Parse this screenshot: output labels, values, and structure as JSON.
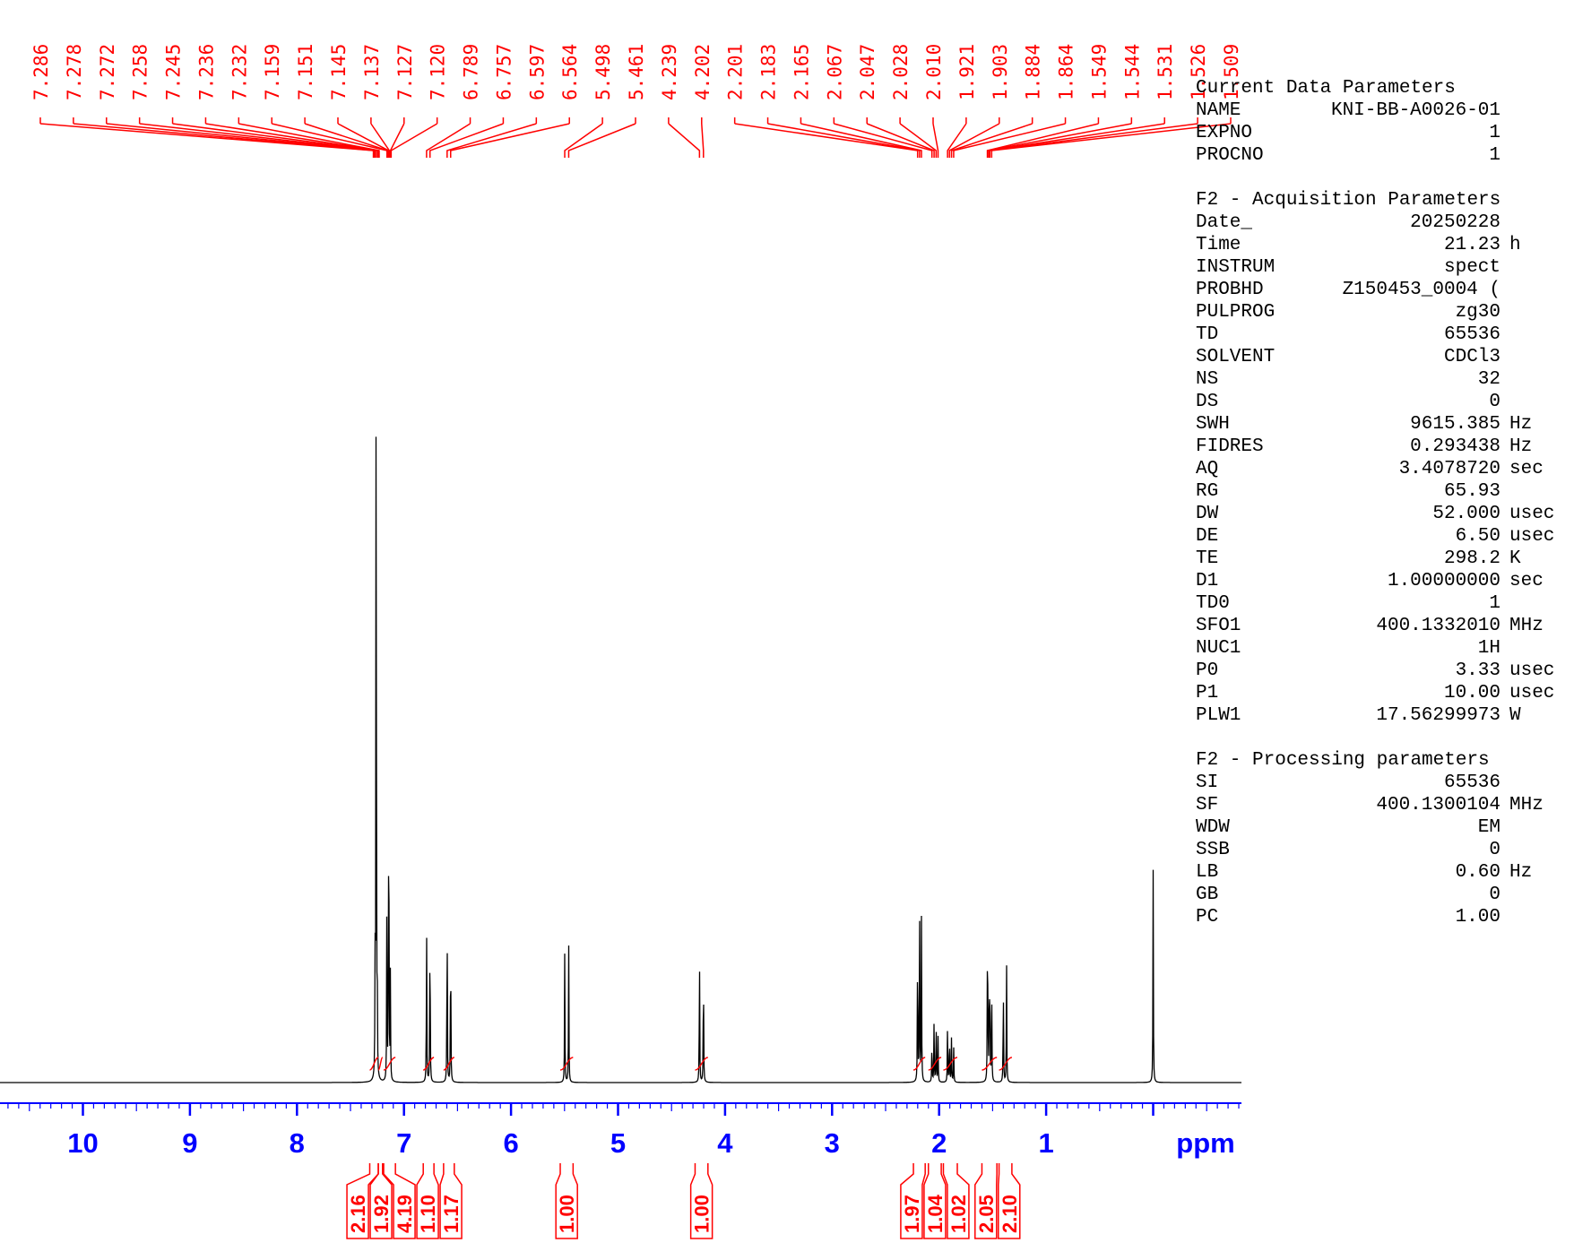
{
  "chart_data": {
    "type": "line",
    "xlabel": "ppm",
    "x_reversed": true,
    "xlim": [
      11.0,
      -0.85
    ],
    "x_ticks": [
      "10",
      "9",
      "8",
      "7",
      "6",
      "5",
      "4",
      "3",
      "2",
      "1"
    ],
    "peak_labels": [
      "7.286",
      "7.278",
      "7.272",
      "7.258",
      "7.245",
      "7.236",
      "7.232",
      "7.159",
      "7.151",
      "7.145",
      "7.137",
      "7.127",
      "7.120",
      "6.789",
      "6.757",
      "6.597",
      "6.564",
      "5.498",
      "5.461",
      "4.239",
      "4.202",
      "2.201",
      "2.183",
      "2.165",
      "2.067",
      "2.047",
      "2.028",
      "2.010",
      "1.921",
      "1.903",
      "1.884",
      "1.864",
      "1.549",
      "1.544",
      "1.531",
      "1.526",
      "1.509"
    ],
    "peaks": [
      {
        "ppm": 7.26,
        "h": 0.95
      },
      {
        "ppm": 7.27,
        "h": 0.12
      },
      {
        "ppm": 7.25,
        "h": 0.1
      },
      {
        "ppm": 7.16,
        "h": 0.2
      },
      {
        "ppm": 7.145,
        "h": 0.22
      },
      {
        "ppm": 7.14,
        "h": 0.16
      },
      {
        "ppm": 7.127,
        "h": 0.12
      },
      {
        "ppm": 6.789,
        "h": 0.185
      },
      {
        "ppm": 6.757,
        "h": 0.2
      },
      {
        "ppm": 6.597,
        "h": 0.21
      },
      {
        "ppm": 6.564,
        "h": 0.185
      },
      {
        "ppm": 5.498,
        "h": 0.145
      },
      {
        "ppm": 5.461,
        "h": 0.155
      },
      {
        "ppm": 4.239,
        "h": 0.155
      },
      {
        "ppm": 4.202,
        "h": 0.145
      },
      {
        "ppm": 2.201,
        "h": 0.17
      },
      {
        "ppm": 2.183,
        "h": 0.23
      },
      {
        "ppm": 2.165,
        "h": 0.18
      },
      {
        "ppm": 2.067,
        "h": 0.05
      },
      {
        "ppm": 2.047,
        "h": 0.07
      },
      {
        "ppm": 2.028,
        "h": 0.07
      },
      {
        "ppm": 2.01,
        "h": 0.05
      },
      {
        "ppm": 1.921,
        "h": 0.07
      },
      {
        "ppm": 1.903,
        "h": 0.06
      },
      {
        "ppm": 1.884,
        "h": 0.05
      },
      {
        "ppm": 1.864,
        "h": 0.04
      },
      {
        "ppm": 1.549,
        "h": 0.11
      },
      {
        "ppm": 1.544,
        "h": 0.1
      },
      {
        "ppm": 1.531,
        "h": 0.1
      },
      {
        "ppm": 1.526,
        "h": 0.1
      },
      {
        "ppm": 1.509,
        "h": 0.12
      },
      {
        "ppm": 1.4,
        "h": 0.12
      },
      {
        "ppm": 1.37,
        "h": 0.14
      },
      {
        "ppm": 0.0,
        "h": 0.235
      }
    ],
    "integrals": [
      {
        "label": "2.16",
        "range": [
          7.32,
          7.24
        ]
      },
      {
        "label": "1.92",
        "range": [
          7.24,
          7.2
        ]
      },
      {
        "label": "4.19",
        "range": [
          7.19,
          7.08
        ]
      },
      {
        "label": "1.10",
        "range": [
          6.82,
          6.72
        ]
      },
      {
        "label": "1.17",
        "range": [
          6.63,
          6.53
        ]
      },
      {
        "label": "1.00",
        "range": [
          5.54,
          5.42
        ]
      },
      {
        "label": "1.00",
        "range": [
          4.28,
          4.16
        ]
      },
      {
        "label": "1.97",
        "range": [
          2.24,
          2.13
        ]
      },
      {
        "label": "1.04",
        "range": [
          2.1,
          1.98
        ]
      },
      {
        "label": "1.02",
        "range": [
          1.96,
          1.83
        ]
      },
      {
        "label": "2.05",
        "range": [
          1.6,
          1.46
        ]
      },
      {
        "label": "2.10",
        "range": [
          1.44,
          1.32
        ]
      }
    ],
    "colors": {
      "spectrum": "#000000",
      "peak_labels": "#ff0000",
      "integrals": "#ff0000",
      "axis": "#0000ff"
    }
  },
  "parameters": {
    "current_title": "Current Data Parameters",
    "current": [
      {
        "k": "NAME",
        "v": "KNI-BB-A0026-01",
        "u": ""
      },
      {
        "k": "EXPNO",
        "v": "1",
        "u": ""
      },
      {
        "k": "PROCNO",
        "v": "1",
        "u": ""
      }
    ],
    "acq_title": "F2 - Acquisition Parameters",
    "acq": [
      {
        "k": "Date_",
        "v": "20250228",
        "u": ""
      },
      {
        "k": "Time",
        "v": "21.23",
        "u": "h"
      },
      {
        "k": "INSTRUM",
        "v": "spect",
        "u": ""
      },
      {
        "k": "PROBHD",
        "v": "Z150453_0004 (",
        "u": ""
      },
      {
        "k": "PULPROG",
        "v": "zg30",
        "u": ""
      },
      {
        "k": "TD",
        "v": "65536",
        "u": ""
      },
      {
        "k": "SOLVENT",
        "v": "CDCl3",
        "u": ""
      },
      {
        "k": "NS",
        "v": "32",
        "u": ""
      },
      {
        "k": "DS",
        "v": "0",
        "u": ""
      },
      {
        "k": "SWH",
        "v": "9615.385",
        "u": "Hz"
      },
      {
        "k": "FIDRES",
        "v": "0.293438",
        "u": "Hz"
      },
      {
        "k": "AQ",
        "v": "3.4078720",
        "u": "sec"
      },
      {
        "k": "RG",
        "v": "65.93",
        "u": ""
      },
      {
        "k": "DW",
        "v": "52.000",
        "u": "usec"
      },
      {
        "k": "DE",
        "v": "6.50",
        "u": "usec"
      },
      {
        "k": "TE",
        "v": "298.2",
        "u": "K"
      },
      {
        "k": "D1",
        "v": "1.00000000",
        "u": "sec"
      },
      {
        "k": "TD0",
        "v": "1",
        "u": ""
      },
      {
        "k": "SFO1",
        "v": "400.1332010",
        "u": "MHz"
      },
      {
        "k": "NUC1",
        "v": "1H",
        "u": ""
      },
      {
        "k": "P0",
        "v": "3.33",
        "u": "usec"
      },
      {
        "k": "P1",
        "v": "10.00",
        "u": "usec"
      },
      {
        "k": "PLW1",
        "v": "17.56299973",
        "u": "W"
      }
    ],
    "proc_title": "F2 - Processing parameters",
    "proc": [
      {
        "k": "SI",
        "v": "65536",
        "u": ""
      },
      {
        "k": "SF",
        "v": "400.1300104",
        "u": "MHz"
      },
      {
        "k": "WDW",
        "v": "EM",
        "u": ""
      },
      {
        "k": "SSB",
        "v": "0",
        "u": ""
      },
      {
        "k": "LB",
        "v": "0.60",
        "u": "Hz"
      },
      {
        "k": "GB",
        "v": "0",
        "u": ""
      },
      {
        "k": "PC",
        "v": "1.00",
        "u": ""
      }
    ]
  }
}
